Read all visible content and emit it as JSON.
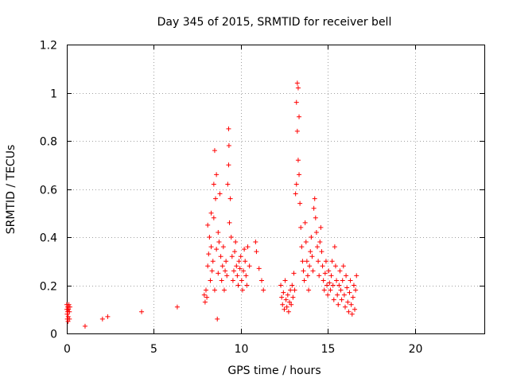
{
  "chart_data": {
    "type": "scatter",
    "title": "Day 345 of 2015, SRMTID for receiver bell",
    "xlabel": "GPS time / hours",
    "ylabel": "SRMTID / TECUs",
    "xlim": [
      0,
      24
    ],
    "ylim": [
      0,
      1.2
    ],
    "x_ticks": [
      0,
      5,
      10,
      15,
      20
    ],
    "y_ticks": [
      0,
      0.2,
      0.4,
      0.6,
      0.8,
      1,
      1.2
    ],
    "x_tick_labels": [
      "0",
      "5",
      "10",
      "15",
      "20"
    ],
    "y_tick_labels": [
      "0",
      "0.2",
      "0.4",
      "0.6",
      "0.8",
      "1",
      "1.2"
    ],
    "grid": true,
    "marker": "+",
    "color": "#ff0000",
    "series": [
      {
        "name": "SRMTID",
        "points": [
          [
            0.0,
            0.12
          ],
          [
            0.0,
            0.1
          ],
          [
            0.02,
            0.08
          ],
          [
            0.03,
            0.06
          ],
          [
            0.05,
            0.11
          ],
          [
            0.05,
            0.09
          ],
          [
            0.07,
            0.05
          ],
          [
            0.08,
            0.07
          ],
          [
            0.1,
            0.1
          ],
          [
            0.12,
            0.12
          ],
          [
            0.15,
            0.09
          ],
          [
            0.15,
            0.06
          ],
          [
            0.18,
            0.11
          ],
          [
            1.05,
            0.03
          ],
          [
            2.05,
            0.06
          ],
          [
            2.35,
            0.07
          ],
          [
            4.3,
            0.09
          ],
          [
            6.35,
            0.11
          ],
          [
            7.9,
            0.16
          ],
          [
            7.95,
            0.13
          ],
          [
            8.0,
            0.18
          ],
          [
            8.05,
            0.15
          ],
          [
            8.1,
            0.28
          ],
          [
            8.1,
            0.45
          ],
          [
            8.15,
            0.33
          ],
          [
            8.2,
            0.4
          ],
          [
            8.25,
            0.22
          ],
          [
            8.3,
            0.36
          ],
          [
            8.3,
            0.5
          ],
          [
            8.35,
            0.26
          ],
          [
            8.4,
            0.3
          ],
          [
            8.45,
            0.62
          ],
          [
            8.45,
            0.48
          ],
          [
            8.5,
            0.76
          ],
          [
            8.5,
            0.18
          ],
          [
            8.55,
            0.56
          ],
          [
            8.6,
            0.66
          ],
          [
            8.6,
            0.35
          ],
          [
            8.65,
            0.06
          ],
          [
            8.7,
            0.42
          ],
          [
            8.7,
            0.25
          ],
          [
            8.75,
            0.38
          ],
          [
            8.8,
            0.58
          ],
          [
            8.85,
            0.32
          ],
          [
            8.9,
            0.22
          ],
          [
            8.95,
            0.28
          ],
          [
            9.0,
            0.36
          ],
          [
            9.05,
            0.18
          ],
          [
            9.1,
            0.26
          ],
          [
            9.15,
            0.3
          ],
          [
            9.2,
            0.24
          ],
          [
            9.25,
            0.62
          ],
          [
            9.3,
            0.85
          ],
          [
            9.3,
            0.7
          ],
          [
            9.32,
            0.78
          ],
          [
            9.35,
            0.46
          ],
          [
            9.4,
            0.56
          ],
          [
            9.45,
            0.4
          ],
          [
            9.5,
            0.32
          ],
          [
            9.55,
            0.22
          ],
          [
            9.6,
            0.26
          ],
          [
            9.65,
            0.34
          ],
          [
            9.7,
            0.38
          ],
          [
            9.75,
            0.28
          ],
          [
            9.8,
            0.24
          ],
          [
            9.85,
            0.2
          ],
          [
            9.9,
            0.3
          ],
          [
            9.95,
            0.27
          ],
          [
            10.0,
            0.32
          ],
          [
            10.05,
            0.22
          ],
          [
            10.1,
            0.18
          ],
          [
            10.15,
            0.26
          ],
          [
            10.2,
            0.35
          ],
          [
            10.25,
            0.3
          ],
          [
            10.3,
            0.24
          ],
          [
            10.35,
            0.2
          ],
          [
            10.4,
            0.36
          ],
          [
            10.5,
            0.28
          ],
          [
            10.85,
            0.38
          ],
          [
            10.9,
            0.34
          ],
          [
            11.05,
            0.27
          ],
          [
            11.2,
            0.22
          ],
          [
            11.3,
            0.18
          ],
          [
            12.3,
            0.2
          ],
          [
            12.35,
            0.15
          ],
          [
            12.4,
            0.12
          ],
          [
            12.45,
            0.17
          ],
          [
            12.5,
            0.1
          ],
          [
            12.55,
            0.22
          ],
          [
            12.6,
            0.14
          ],
          [
            12.65,
            0.11
          ],
          [
            12.7,
            0.16
          ],
          [
            12.75,
            0.09
          ],
          [
            12.8,
            0.13
          ],
          [
            12.85,
            0.18
          ],
          [
            12.9,
            0.12
          ],
          [
            12.95,
            0.2
          ],
          [
            13.0,
            0.15
          ],
          [
            13.05,
            0.25
          ],
          [
            13.1,
            0.18
          ],
          [
            13.15,
            0.58
          ],
          [
            13.2,
            0.62
          ],
          [
            13.2,
            0.96
          ],
          [
            13.25,
            1.04
          ],
          [
            13.25,
            0.84
          ],
          [
            13.3,
            0.72
          ],
          [
            13.3,
            1.02
          ],
          [
            13.35,
            0.9
          ],
          [
            13.35,
            0.66
          ],
          [
            13.4,
            0.54
          ],
          [
            13.45,
            0.44
          ],
          [
            13.5,
            0.36
          ],
          [
            13.55,
            0.3
          ],
          [
            13.6,
            0.26
          ],
          [
            13.65,
            0.22
          ],
          [
            13.7,
            0.46
          ],
          [
            13.75,
            0.38
          ],
          [
            13.8,
            0.3
          ],
          [
            13.85,
            0.24
          ],
          [
            13.9,
            0.18
          ],
          [
            13.95,
            0.28
          ],
          [
            14.0,
            0.34
          ],
          [
            14.05,
            0.4
          ],
          [
            14.1,
            0.32
          ],
          [
            14.15,
            0.26
          ],
          [
            14.2,
            0.52
          ],
          [
            14.25,
            0.56
          ],
          [
            14.3,
            0.48
          ],
          [
            14.35,
            0.42
          ],
          [
            14.4,
            0.36
          ],
          [
            14.45,
            0.3
          ],
          [
            14.5,
            0.24
          ],
          [
            14.55,
            0.38
          ],
          [
            14.6,
            0.44
          ],
          [
            14.65,
            0.34
          ],
          [
            14.7,
            0.28
          ],
          [
            14.75,
            0.22
          ],
          [
            14.8,
            0.18
          ],
          [
            14.85,
            0.25
          ],
          [
            14.9,
            0.3
          ],
          [
            14.95,
            0.2
          ],
          [
            15.0,
            0.16
          ],
          [
            15.05,
            0.26
          ],
          [
            15.1,
            0.21
          ],
          [
            15.15,
            0.18
          ],
          [
            15.2,
            0.24
          ],
          [
            15.25,
            0.3
          ],
          [
            15.3,
            0.2
          ],
          [
            15.35,
            0.14
          ],
          [
            15.4,
            0.36
          ],
          [
            15.45,
            0.28
          ],
          [
            15.5,
            0.22
          ],
          [
            15.55,
            0.16
          ],
          [
            15.6,
            0.12
          ],
          [
            15.65,
            0.2
          ],
          [
            15.7,
            0.26
          ],
          [
            15.75,
            0.18
          ],
          [
            15.8,
            0.14
          ],
          [
            15.85,
            0.22
          ],
          [
            15.9,
            0.28
          ],
          [
            15.95,
            0.16
          ],
          [
            16.0,
            0.11
          ],
          [
            16.05,
            0.24
          ],
          [
            16.1,
            0.19
          ],
          [
            16.15,
            0.13
          ],
          [
            16.2,
            0.09
          ],
          [
            16.25,
            0.17
          ],
          [
            16.3,
            0.22
          ],
          [
            16.35,
            0.12
          ],
          [
            16.4,
            0.08
          ],
          [
            16.45,
            0.15
          ],
          [
            16.5,
            0.2
          ],
          [
            16.55,
            0.1
          ],
          [
            16.6,
            0.18
          ],
          [
            16.65,
            0.24
          ]
        ]
      }
    ]
  }
}
